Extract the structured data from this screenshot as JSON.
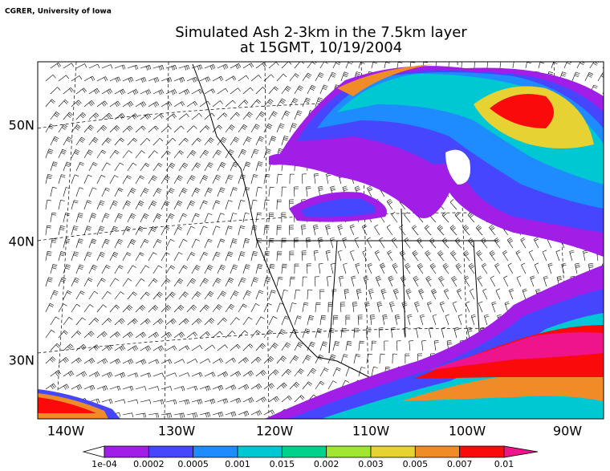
{
  "credit": "CGRER, University of Iowa",
  "title": [
    "Simulated Ash 2-3km in the 7.5km layer",
    "at 15GMT, 10/19/2004"
  ],
  "lat_labels": [
    "50N",
    "40N",
    "30N"
  ],
  "lon_labels": [
    "140W",
    "130W",
    "120W",
    "110W",
    "100W",
    "90W"
  ],
  "legend": {
    "labels": [
      "1e-04",
      "0.0002",
      "0.0005",
      "0.001",
      "0.015",
      "0.002",
      "0.003",
      "0.005",
      "0.007",
      "0.01"
    ],
    "colors": [
      "#a01ee6",
      "#4646ff",
      "#1e8cff",
      "#00c8d2",
      "#00d28c",
      "#a0e632",
      "#e6d232",
      "#f08c28",
      "#fa0a0a",
      "#f0148c"
    ]
  }
}
